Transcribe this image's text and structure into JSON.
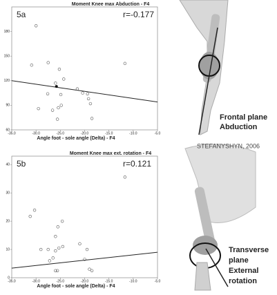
{
  "chart_data": [
    {
      "type": "scatter",
      "title": "Moment Knee max Abduction - F4",
      "panel": "5a",
      "annotation": "r=-0.177",
      "x_label": "Angle foot - sole angle (Delta) - F4",
      "xlim": [
        -35,
        -5
      ],
      "ylim": [
        60,
        210
      ],
      "xticks": [
        {
          "value": -35,
          "label": "-35.0"
        },
        {
          "value": -30,
          "label": "-30.0"
        },
        {
          "value": -25,
          "label": "-25.0"
        },
        {
          "value": -20,
          "label": "-20.0"
        },
        {
          "value": -15,
          "label": "-15.0"
        },
        {
          "value": -10,
          "label": "-10.0"
        },
        {
          "value": -5,
          "label": "-5.0"
        }
      ],
      "yticks": [
        60,
        90,
        120,
        150,
        180
      ],
      "color": "#555555",
      "x": [
        -30.0,
        -30.9,
        -27.5,
        -25.2,
        -24.3,
        -26.0,
        -27.6,
        -24.9,
        -24.8,
        -25.4,
        -26.6,
        -29.5,
        -25.6,
        -21.5,
        -20.4,
        -19.4,
        -19.2,
        -18.8,
        -18.5,
        -11.7
      ],
      "y": [
        187,
        139,
        142,
        134,
        122,
        117,
        104,
        103,
        90,
        87,
        84,
        86,
        73,
        110,
        105,
        104,
        98,
        92,
        74,
        141
      ],
      "mean": {
        "x": -25.8,
        "y": 113
      },
      "fit": {
        "x": [
          -35,
          -5
        ],
        "y": [
          120,
          94
        ]
      }
    },
    {
      "type": "scatter",
      "title": "Moment Knee max ext. rotation - F4",
      "panel": "5b",
      "annotation": "r=0.121",
      "x_label": "Angle foot - sole angle (Delta) - F4",
      "xlim": [
        -35,
        -5
      ],
      "ylim": [
        0,
        43
      ],
      "xticks": [
        {
          "value": -35,
          "label": "-35.0"
        },
        {
          "value": -30,
          "label": "-30.0"
        },
        {
          "value": -25,
          "label": "-25.0"
        },
        {
          "value": -20,
          "label": "-20.0"
        },
        {
          "value": -15,
          "label": "-15.0"
        },
        {
          "value": -10,
          "label": "-10.0"
        },
        {
          "value": -5,
          "label": "-5.0"
        }
      ],
      "yticks": [
        0,
        10,
        20,
        30,
        40
      ],
      "color": "#555555",
      "x": [
        -11.7,
        -30.3,
        -31.2,
        -24.6,
        -25.5,
        -26.0,
        -29.0,
        -27.5,
        -26.0,
        -26.5,
        -25.3,
        -24.5,
        -21.0,
        -19.5,
        -20.0,
        -19.0,
        -18.5,
        -26.0,
        -25.6,
        -27.2
      ],
      "y": [
        35.6,
        23.9,
        21.7,
        20.0,
        18.0,
        14.6,
        10.0,
        10.0,
        9.5,
        7.0,
        10.5,
        11.0,
        12.0,
        10.0,
        6.5,
        3.0,
        2.5,
        2.5,
        2.5,
        6.0
      ],
      "fit": {
        "x": [
          -35,
          -5
        ],
        "y": [
          3.4,
          9.0
        ]
      }
    }
  ],
  "illustration": {
    "top_caption": [
      "Frontal plane",
      "Abduction"
    ],
    "credit": "STEFANYSHYN, 2006",
    "bottom_caption": [
      "Transverse",
      "plane",
      "External",
      "rotation"
    ]
  }
}
